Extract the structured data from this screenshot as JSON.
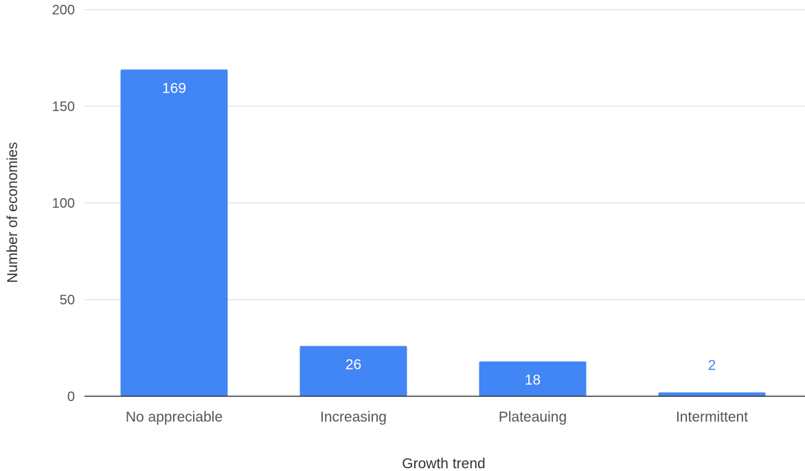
{
  "chart_data": {
    "type": "bar",
    "title": "",
    "xlabel": "Growth trend",
    "ylabel": "Number of economies",
    "categories": [
      "No appreciable",
      "Increasing",
      "Plateauing",
      "Intermittent"
    ],
    "values": [
      169,
      26,
      18,
      2
    ],
    "data_labels": [
      "169",
      "26",
      "18",
      "2"
    ],
    "ylim": [
      0,
      200
    ],
    "yticks": [
      "0",
      "50",
      "100",
      "150",
      "200"
    ],
    "ytick_values": [
      0,
      50,
      100,
      150,
      200
    ],
    "grid": true,
    "legend": "none",
    "colors": {
      "bar": "#4285f4",
      "label_inside": "#ffffff",
      "label_outside": "#4285f4",
      "grid": "#dddddd",
      "baseline": "#333333"
    }
  }
}
